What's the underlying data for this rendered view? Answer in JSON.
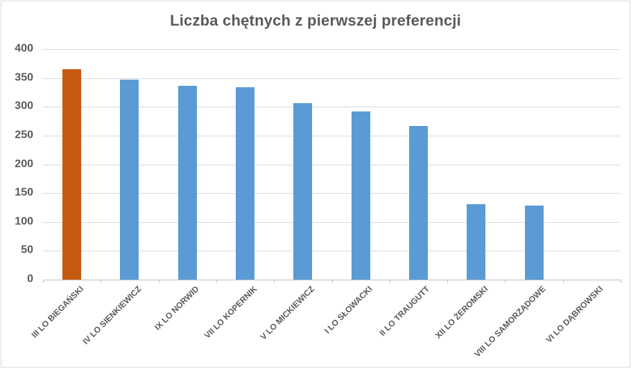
{
  "title": "Liczba chętnych z pierwszej preferencji",
  "colors": {
    "highlight_bar": "#C55A11",
    "default_bar": "#5B9BD5",
    "text": "#595959",
    "gridline": "#D9D9D9",
    "axis_line": "#BFBFBF",
    "chart_border": "#D9D9D9",
    "background": "#FFFFFF"
  },
  "chart_data": {
    "type": "bar",
    "title": "Liczba chętnych z pierwszej preferencji",
    "categories": [
      "III LO BIEGAŃSKI",
      "IV LO SIENKIEWICZ",
      "IX LO NORWID",
      "VII LO KOPERNIK",
      "V LO MICKIEWICZ",
      "I LO SŁOWACKI",
      "II LO TRAUGUTT",
      "XII LO ŻEROMSKI",
      "VIII LO SAMORZĄDOWE",
      "VI LO DĄBROWSKI"
    ],
    "values": [
      365,
      347,
      336,
      334,
      306,
      292,
      267,
      131,
      129,
      0
    ],
    "bar_colors": [
      "#C55A11",
      "#5B9BD5",
      "#5B9BD5",
      "#5B9BD5",
      "#5B9BD5",
      "#5B9BD5",
      "#5B9BD5",
      "#5B9BD5",
      "#5B9BD5",
      "#5B9BD5"
    ],
    "xlabel": "",
    "ylabel": "",
    "ylim": [
      0,
      400
    ],
    "yticks": [
      0,
      50,
      100,
      150,
      200,
      250,
      300,
      350,
      400
    ],
    "x_label_rotation_deg": -45,
    "grid": true,
    "legend": false
  }
}
